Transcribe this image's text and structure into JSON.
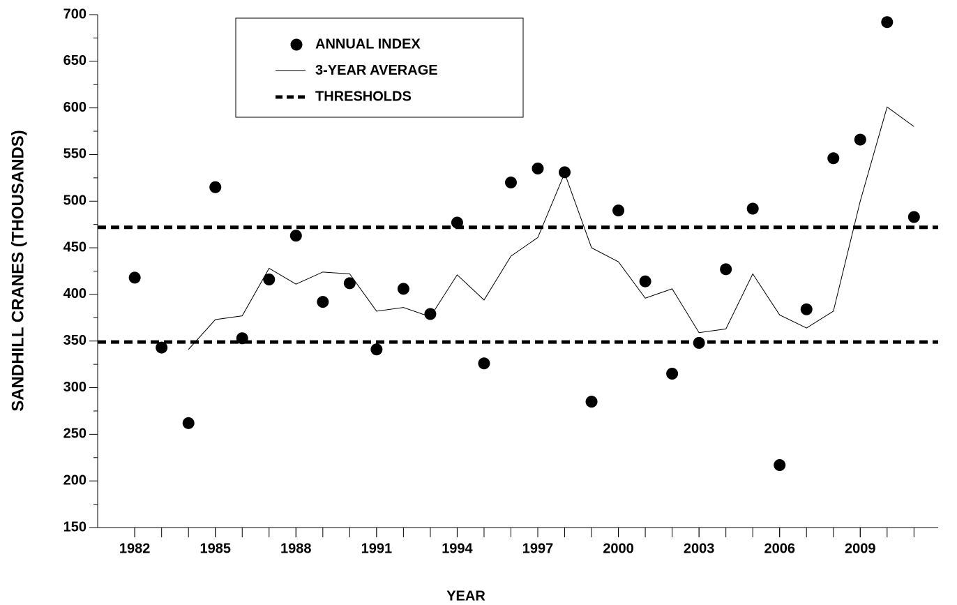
{
  "chart_data": {
    "type": "scatter",
    "x_label": "YEAR",
    "y_label": "SANDHILL CRANES (THOUSANDS)",
    "xlim": [
      1980.62,
      2011.9
    ],
    "ylim": [
      150,
      700
    ],
    "xticks": [
      1982,
      1985,
      1988,
      1991,
      1994,
      1997,
      2000,
      2003,
      2006,
      2009
    ],
    "x_minor_ticks": [
      1982,
      1983,
      1984,
      1985,
      1986,
      1987,
      1988,
      1989,
      1990,
      1991,
      1992,
      1993,
      1994,
      1995,
      1996,
      1997,
      1998,
      1999,
      2000,
      2001,
      2002,
      2003,
      2004,
      2005,
      2006,
      2007,
      2008,
      2009,
      2010,
      2011
    ],
    "yticks": [
      150,
      200,
      250,
      300,
      350,
      400,
      450,
      500,
      550,
      600,
      650,
      700
    ],
    "y_minor_ticks": [
      175,
      225,
      275,
      325,
      375,
      425,
      475,
      525,
      575,
      625,
      675
    ],
    "series": [
      {
        "name": "ANNUAL INDEX",
        "kind": "scatter",
        "color": "#000000",
        "x": [
          1982,
          1983,
          1984,
          1985,
          1986,
          1987,
          1988,
          1989,
          1990,
          1991,
          1992,
          1993,
          1994,
          1995,
          1996,
          1997,
          1998,
          1999,
          2000,
          2001,
          2002,
          2003,
          2004,
          2005,
          2006,
          2007,
          2008,
          2009,
          2010,
          2011
        ],
        "values": [
          418,
          343,
          262,
          515,
          353,
          416,
          463,
          392,
          412,
          341,
          406,
          379,
          477,
          326,
          520,
          535,
          531,
          285,
          490,
          414,
          315,
          348,
          427,
          492,
          217,
          384,
          546,
          566,
          692,
          483
        ]
      },
      {
        "name": "3-YEAR AVERAGE",
        "kind": "line",
        "color": "#000000",
        "x": [
          1984,
          1985,
          1986,
          1987,
          1988,
          1989,
          1990,
          1991,
          1992,
          1993,
          1994,
          1995,
          1996,
          1997,
          1998,
          1999,
          2000,
          2001,
          2002,
          2003,
          2004,
          2005,
          2006,
          2007,
          2008,
          2009,
          2010,
          2011
        ],
        "values": [
          341,
          373,
          377,
          428,
          411,
          424,
          422,
          382,
          386,
          376,
          421,
          394,
          441,
          461,
          530,
          450,
          435,
          396,
          406,
          359,
          363,
          422,
          378,
          364,
          382,
          500,
          601,
          580
        ]
      },
      {
        "name": "THRESHOLDS",
        "kind": "hline",
        "color": "#000000",
        "values": [
          472,
          349
        ]
      }
    ]
  }
}
